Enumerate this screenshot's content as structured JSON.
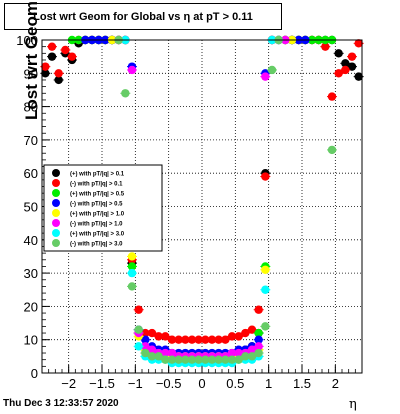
{
  "window": {
    "title": "Lost wrt Geom for Global vs   η at pT > 0.11",
    "timestamp": "Thu Dec  3 12:33:57 2020"
  },
  "chart_data": {
    "type": "scatter",
    "title": "Lost wrt Geom for Global vs   η at pT > 0.11",
    "xlabel": "η",
    "ylabel": "Lost wrt Geom (%)",
    "xlim": [
      -2.4,
      2.4
    ],
    "ylim": [
      0,
      100
    ],
    "grid": true,
    "legend_position": "middle-left",
    "x_ticks": [
      -2,
      -1.5,
      -1,
      -0.5,
      0,
      0.5,
      1,
      1.5,
      2
    ],
    "x_tick_labels": [
      "−2",
      "−1.5",
      "−1",
      "−0.5",
      "0",
      "0.5",
      "1",
      "1.5",
      "2"
    ],
    "y_ticks": [
      0,
      10,
      20,
      30,
      40,
      50,
      60,
      70,
      80,
      90,
      100
    ],
    "y_tick_labels": [
      "0",
      "10",
      "20",
      "30",
      "40",
      "50",
      "60",
      "70",
      "80",
      "90",
      "100"
    ],
    "series": [
      {
        "name": "(+) with pT/|q| > 0.1",
        "color": "#000000",
        "x": [
          -2.35,
          -2.25,
          -2.15,
          -2.05,
          -1.95,
          -1.85,
          -1.75,
          -1.65,
          -1.55,
          -1.45,
          -1.35,
          -1.25,
          -1.15,
          -1.05,
          -0.95,
          -0.85,
          -0.75,
          -0.65,
          -0.55,
          -0.45,
          -0.35,
          -0.25,
          -0.15,
          -0.05,
          0.05,
          0.15,
          0.25,
          0.35,
          0.45,
          0.55,
          0.65,
          0.75,
          0.85,
          0.95,
          1.05,
          1.15,
          1.25,
          1.35,
          1.45,
          1.55,
          1.65,
          1.75,
          1.85,
          1.95,
          2.05,
          2.15,
          2.25,
          2.35
        ],
        "y": [
          90,
          95,
          88,
          96,
          94,
          99,
          100,
          100,
          100,
          100,
          100,
          100,
          100,
          33,
          12,
          8,
          7,
          6,
          5,
          5,
          5,
          5,
          5,
          5,
          5,
          5,
          5,
          5,
          5,
          6,
          7,
          8,
          12,
          60,
          100,
          100,
          100,
          100,
          100,
          100,
          100,
          100,
          100,
          100,
          96,
          93,
          92,
          89
        ]
      },
      {
        "name": "(-) with pT/|q| > 0.1",
        "color": "#ff0000",
        "x": [
          -2.35,
          -2.25,
          -2.15,
          -2.05,
          -1.95,
          -1.85,
          -1.75,
          -1.65,
          -1.55,
          -1.45,
          -1.35,
          -1.25,
          -1.15,
          -1.05,
          -0.95,
          -0.85,
          -0.75,
          -0.65,
          -0.55,
          -0.45,
          -0.35,
          -0.25,
          -0.15,
          -0.05,
          0.05,
          0.15,
          0.25,
          0.35,
          0.45,
          0.55,
          0.65,
          0.75,
          0.85,
          0.95,
          1.05,
          1.15,
          1.25,
          1.35,
          1.45,
          1.55,
          1.65,
          1.75,
          1.85,
          1.95,
          2.05,
          2.15,
          2.25,
          2.35
        ],
        "y": [
          92,
          98,
          90,
          97,
          95,
          100,
          100,
          100,
          100,
          100,
          100,
          100,
          100,
          34,
          19,
          12,
          12,
          11,
          11,
          10,
          10,
          10,
          10,
          10,
          10,
          10,
          10,
          10,
          11,
          11,
          12,
          13,
          19,
          59,
          100,
          100,
          100,
          100,
          100,
          100,
          100,
          100,
          98,
          83,
          90,
          91,
          95,
          99
        ]
      },
      {
        "name": "(+) with pT/|q| > 0.5",
        "color": "#00ee00",
        "x": [
          -1.95,
          -1.85,
          -1.75,
          -1.65,
          -1.55,
          -1.45,
          -1.35,
          -1.25,
          -1.15,
          -1.05,
          -0.95,
          -0.85,
          -0.75,
          -0.65,
          -0.55,
          -0.45,
          -0.35,
          -0.25,
          -0.15,
          -0.05,
          0.05,
          0.15,
          0.25,
          0.35,
          0.45,
          0.55,
          0.65,
          0.75,
          0.85,
          0.95,
          1.05,
          1.15,
          1.25,
          1.35,
          1.45,
          1.55,
          1.65,
          1.75,
          1.85,
          1.95
        ],
        "y": [
          100,
          100,
          100,
          100,
          100,
          100,
          100,
          100,
          100,
          32,
          12,
          7,
          6,
          5,
          5,
          4,
          4,
          4,
          4,
          4,
          4,
          4,
          4,
          4,
          4,
          5,
          5,
          6,
          12,
          32,
          100,
          100,
          100,
          100,
          100,
          100,
          100,
          100,
          100,
          100
        ]
      },
      {
        "name": "(-) with pT/|q| > 0.5",
        "color": "#0000ff",
        "x": [
          -1.75,
          -1.65,
          -1.55,
          -1.45,
          -1.35,
          -1.25,
          -1.15,
          -1.05,
          -0.95,
          -0.85,
          -0.75,
          -0.65,
          -0.55,
          -0.45,
          -0.35,
          -0.25,
          -0.15,
          -0.05,
          0.05,
          0.15,
          0.25,
          0.35,
          0.45,
          0.55,
          0.65,
          0.75,
          0.85,
          0.95,
          1.05,
          1.15,
          1.25,
          1.35,
          1.45,
          1.55
        ],
        "y": [
          100,
          100,
          100,
          100,
          100,
          100,
          100,
          92,
          13,
          10,
          8,
          7,
          7,
          6,
          6,
          6,
          6,
          6,
          6,
          6,
          6,
          6,
          6,
          7,
          7,
          8,
          10,
          90,
          100,
          100,
          100,
          100,
          100,
          100
        ]
      },
      {
        "name": "(+) with pT/|q| > 1.0",
        "color": "#ffff00",
        "x": [
          -1.35,
          -1.25,
          -1.15,
          -1.05,
          -0.95,
          -0.85,
          -0.75,
          -0.65,
          -0.55,
          -0.45,
          -0.35,
          -0.25,
          -0.15,
          -0.05,
          0.05,
          0.15,
          0.25,
          0.35,
          0.45,
          0.55,
          0.65,
          0.75,
          0.85,
          0.95,
          1.05,
          1.15,
          1.25,
          1.35
        ],
        "y": [
          100,
          100,
          100,
          35,
          11,
          7,
          6,
          5,
          5,
          5,
          5,
          5,
          5,
          5,
          5,
          5,
          5,
          5,
          5,
          5,
          5,
          6,
          7,
          31,
          100,
          100,
          100,
          100
        ]
      },
      {
        "name": "(-) with pT/|q| > 1.0",
        "color": "#ff00ff",
        "x": [
          -1.25,
          -1.15,
          -1.05,
          -0.95,
          -0.85,
          -0.75,
          -0.65,
          -0.55,
          -0.45,
          -0.35,
          -0.25,
          -0.15,
          -0.05,
          0.05,
          0.15,
          0.25,
          0.35,
          0.45,
          0.55,
          0.65,
          0.75,
          0.85,
          0.95,
          1.05,
          1.15,
          1.25
        ],
        "y": [
          100,
          100,
          91,
          12,
          8,
          7,
          6,
          6,
          6,
          5,
          5,
          5,
          5,
          5,
          5,
          5,
          5,
          6,
          6,
          6,
          7,
          8,
          89,
          100,
          100,
          100
        ]
      },
      {
        "name": "(+) with pT/|q| > 3.0",
        "color": "#00ffff",
        "x": [
          -1.15,
          -1.05,
          -0.95,
          -0.85,
          -0.75,
          -0.65,
          -0.55,
          -0.45,
          -0.35,
          -0.25,
          -0.15,
          -0.05,
          0.05,
          0.15,
          0.25,
          0.35,
          0.45,
          0.55,
          0.65,
          0.75,
          0.85,
          0.95,
          1.05,
          1.15
        ],
        "y": [
          100,
          30,
          8,
          5,
          4,
          4,
          4,
          3,
          3,
          3,
          3,
          3,
          3,
          3,
          3,
          3,
          3,
          4,
          4,
          4,
          5,
          25,
          100,
          100
        ]
      },
      {
        "name": "(-) with pT/|q| > 3.0",
        "color": "#66cc66",
        "x": [
          -1.25,
          -1.15,
          -1.05,
          -0.95,
          -0.85,
          -0.75,
          -0.65,
          -0.55,
          -0.45,
          -0.35,
          -0.25,
          -0.15,
          -0.05,
          0.05,
          0.15,
          0.25,
          0.35,
          0.45,
          0.55,
          0.65,
          0.75,
          0.85,
          0.95,
          1.05,
          1.15,
          1.95
        ],
        "y": [
          100,
          84,
          26,
          13,
          6,
          5,
          5,
          4,
          4,
          4,
          4,
          4,
          4,
          4,
          4,
          4,
          4,
          4,
          4,
          5,
          5,
          6,
          14,
          91,
          100,
          67
        ]
      }
    ]
  }
}
